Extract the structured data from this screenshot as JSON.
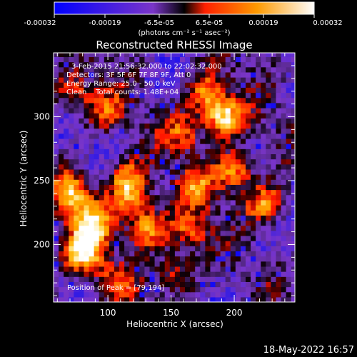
{
  "chart_data": {
    "type": "heatmap",
    "title": "Reconstructed RHESSI Image",
    "xlabel": "Heliocentric X (arcsec)",
    "ylabel": "Heliocentric Y (arcsec)",
    "xlim": [
      57,
      248
    ],
    "ylim": [
      155,
      350
    ],
    "x_ticks": [
      100,
      150,
      200
    ],
    "y_ticks": [
      200,
      250,
      300
    ],
    "grid": false,
    "colorbar": {
      "position": "top",
      "range": [
        -0.00032,
        0.00032
      ],
      "tick_labels": [
        "-0.00032",
        "-0.00019",
        "-6.5e-05",
        "6.5e-05",
        "0.00019",
        "0.00032"
      ],
      "unit_label": "(photons cm⁻² s⁻¹ asec⁻²)",
      "colors": [
        "#0000ff",
        "#7a35c8",
        "#000000",
        "#ff2000",
        "#ff9a00",
        "#ffffff"
      ]
    },
    "annotations": [
      "3-Feb-2015 21:56:32.000 to 22:02:32.000",
      "Detectors: 3F 5F 6F 7F 8F 9F, Att 0",
      "Energy Range: 25.0 - 50.0 keV",
      "Clean    Total counts: 1.48E+04"
    ],
    "peak_label": "Position of Peak = [79,194]",
    "peak": {
      "x": 79,
      "y": 194
    },
    "bright_sources": [
      {
        "x": 192,
        "y": 300,
        "intensity": 1.0
      },
      {
        "x": 178,
        "y": 318,
        "intensity": 0.75
      },
      {
        "x": 160,
        "y": 288,
        "intensity": 0.6
      },
      {
        "x": 80,
        "y": 195,
        "intensity": 1.0
      },
      {
        "x": 72,
        "y": 240,
        "intensity": 0.8
      },
      {
        "x": 88,
        "y": 218,
        "intensity": 0.85
      },
      {
        "x": 115,
        "y": 252,
        "intensity": 0.7
      },
      {
        "x": 132,
        "y": 213,
        "intensity": 0.85
      },
      {
        "x": 118,
        "y": 235,
        "intensity": 0.65
      },
      {
        "x": 200,
        "y": 258,
        "intensity": 0.85
      },
      {
        "x": 225,
        "y": 232,
        "intensity": 0.8
      },
      {
        "x": 170,
        "y": 245,
        "intensity": 0.55
      },
      {
        "x": 155,
        "y": 178,
        "intensity": 0.55
      },
      {
        "x": 165,
        "y": 210,
        "intensity": 0.6
      },
      {
        "x": 72,
        "y": 320,
        "intensity": 0.55
      },
      {
        "x": 105,
        "y": 170,
        "intensity": 0.45
      },
      {
        "x": 97,
        "y": 305,
        "intensity": 0.5
      }
    ]
  },
  "footer": {
    "timestamp": "18-May-2022 16:57"
  }
}
